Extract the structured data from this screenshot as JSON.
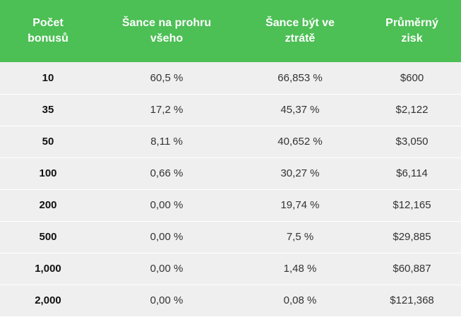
{
  "table": {
    "headers": [
      "Počet\nbonusů",
      "Šance na prohru\nvšeho",
      "Šance být ve\nztrátě",
      "Průměrný\nzisk"
    ],
    "rows": [
      [
        "10",
        "60,5 %",
        "66,853 %",
        "$600"
      ],
      [
        "35",
        "17,2 %",
        "45,37 %",
        "$2,122"
      ],
      [
        "50",
        "8,11 %",
        "40,652 %",
        "$3,050"
      ],
      [
        "100",
        "0,66 %",
        "30,27 %",
        "$6,114"
      ],
      [
        "200",
        "0,00 %",
        "19,74 %",
        "$12,165"
      ],
      [
        "500",
        "0,00 %",
        "7,5 %",
        "$29,885"
      ],
      [
        "1,000",
        "0,00 %",
        "1,48 %",
        "$60,887"
      ],
      [
        "2,000",
        "0,00 %",
        "0,08 %",
        "$121,368"
      ]
    ]
  },
  "colors": {
    "header_bg": "#4cbf55",
    "header_text": "#ffffff",
    "row_bg": "#f0efef"
  }
}
